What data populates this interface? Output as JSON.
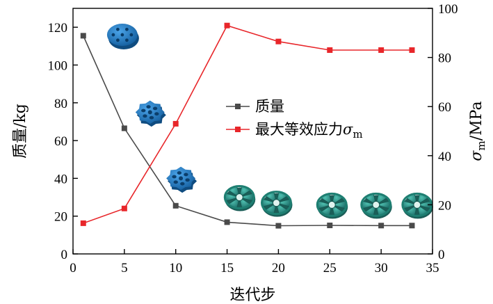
{
  "chart_data": {
    "type": "line",
    "xlabel": "迭代步",
    "ylabel_left": "质量/kg",
    "ylabel_right": {
      "main": "σ",
      "sub": "m",
      "unit": "/MPa"
    },
    "xlim": [
      0,
      35
    ],
    "ylim_left": [
      0,
      130
    ],
    "ylim_right": [
      0,
      100
    ],
    "x_ticks": [
      0,
      5,
      10,
      15,
      20,
      25,
      30,
      35
    ],
    "y_left_ticks": [
      0,
      20,
      40,
      60,
      80,
      100,
      120
    ],
    "y_right_ticks": [
      0,
      20,
      40,
      60,
      80,
      100
    ],
    "grid": false,
    "legend_position": "center-right",
    "series": [
      {
        "name": "质量",
        "axis": "left",
        "color": "#4a4a4a",
        "marker": "square",
        "x": [
          1,
          5,
          10,
          15,
          20,
          25,
          30,
          33
        ],
        "y": [
          115.5,
          66.5,
          25.5,
          16.8,
          14.9,
          15.1,
          15.0,
          15.0
        ]
      },
      {
        "name": "最大等效应力",
        "name_math": {
          "main": "σ",
          "sub": "m"
        },
        "axis": "right",
        "color": "#e8262a",
        "marker": "square",
        "x": [
          1,
          5,
          10,
          15,
          20,
          25,
          30,
          33
        ],
        "y": [
          12.5,
          18.5,
          53,
          93,
          86.5,
          83,
          83,
          83
        ]
      }
    ],
    "illustrations": [
      {
        "name": "structure-iteration-1-icon",
        "x": 4.8,
        "y": 116,
        "color": "#1f78c8"
      },
      {
        "name": "structure-iteration-5-icon",
        "x": 7.5,
        "y": 75,
        "color": "#1f78c8"
      },
      {
        "name": "structure-iteration-10-icon",
        "x": 10.5,
        "y": 40,
        "color": "#1f78c8"
      },
      {
        "name": "structure-iteration-15-icon",
        "x": 16.2,
        "y": 30,
        "color": "#2b8f9e"
      },
      {
        "name": "structure-iteration-20-icon",
        "x": 19.8,
        "y": 27,
        "color": "#2a9070"
      },
      {
        "name": "structure-iteration-25-icon",
        "x": 25.2,
        "y": 26,
        "color": "#2a9070"
      },
      {
        "name": "structure-iteration-30-icon",
        "x": 29.5,
        "y": 26,
        "color": "#2a9070"
      },
      {
        "name": "structure-iteration-33-icon",
        "x": 33.5,
        "y": 26,
        "color": "#2a9070"
      }
    ]
  }
}
